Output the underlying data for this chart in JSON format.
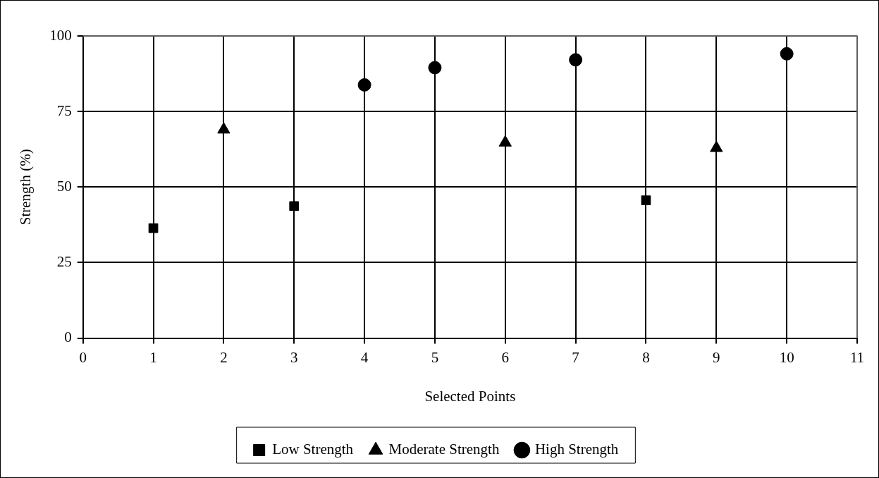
{
  "chart_data": {
    "type": "scatter",
    "xlabel": "Selected Points",
    "ylabel": "Strength (%)",
    "xlim": [
      0,
      11
    ],
    "xticks": [
      0,
      1,
      2,
      3,
      4,
      5,
      6,
      7,
      8,
      9,
      10,
      11
    ],
    "ylim": [
      0,
      100
    ],
    "yticks": [
      0,
      25,
      50,
      75,
      100
    ],
    "grid": true,
    "legend": "bottom",
    "series": [
      {
        "name": "Low Strength",
        "color": "#000000",
        "marker": "square",
        "x": [
          1,
          3,
          8
        ],
        "values": [
          36.4,
          43.7,
          45.6
        ]
      },
      {
        "name": "Moderate Strength",
        "color": "#000000",
        "marker": "triangle",
        "x": [
          2,
          6,
          9
        ],
        "values": [
          69,
          64.7,
          62.9
        ]
      },
      {
        "name": "High Strength",
        "color": "#000000",
        "marker": "circle",
        "x": [
          4,
          5,
          7,
          10
        ],
        "values": [
          83.8,
          89.5,
          92.1,
          94.1
        ]
      }
    ]
  }
}
